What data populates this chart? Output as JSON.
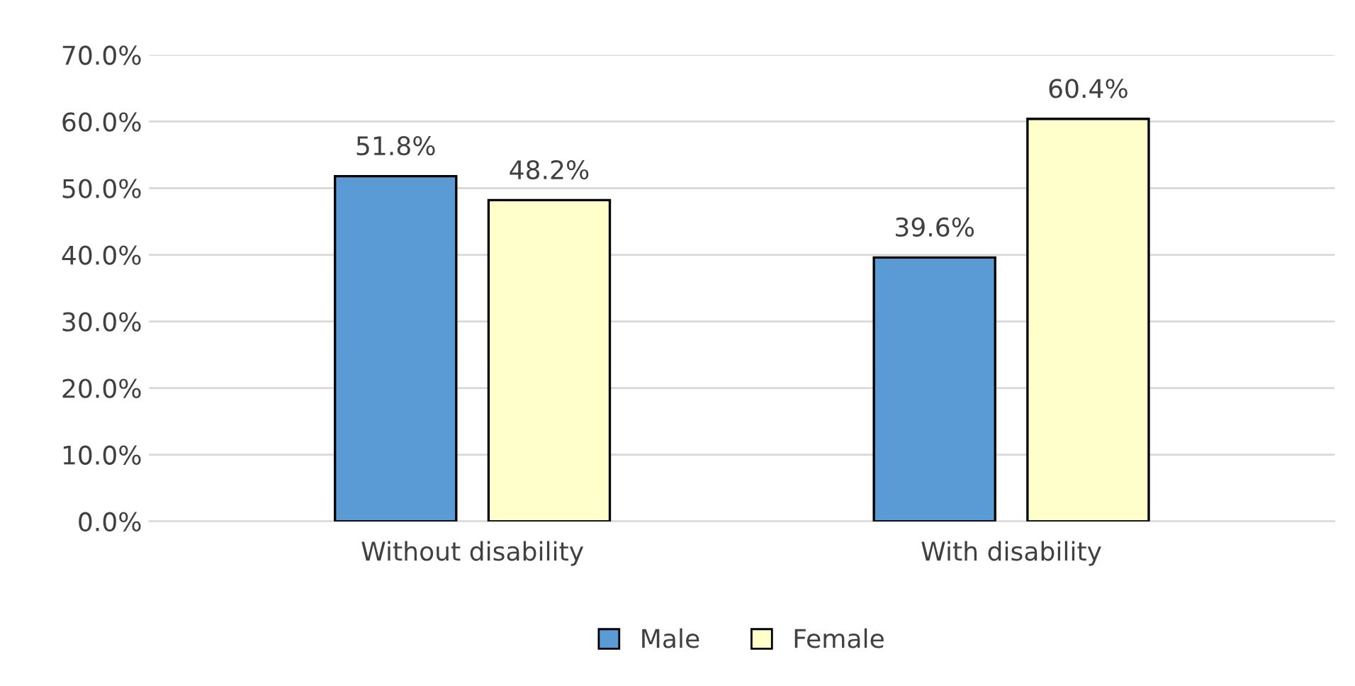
{
  "chart_data": {
    "type": "bar",
    "categories": [
      "Without disability",
      "With disability"
    ],
    "series": [
      {
        "name": "Male",
        "color": "#5b9bd5",
        "values": [
          51.8,
          39.6
        ],
        "value_labels": [
          "51.8%",
          "39.6%"
        ]
      },
      {
        "name": "Female",
        "color": "#ffffcc",
        "values": [
          48.2,
          60.4
        ],
        "value_labels": [
          "48.2%",
          "60.4%"
        ]
      }
    ],
    "ylim": [
      0,
      70
    ],
    "yticks": [
      {
        "value": 0,
        "label": "0.0%"
      },
      {
        "value": 10,
        "label": "10.0%"
      },
      {
        "value": 20,
        "label": "20.0%"
      },
      {
        "value": 30,
        "label": "30.0%"
      },
      {
        "value": 40,
        "label": "40.0%"
      },
      {
        "value": 50,
        "label": "50.0%"
      },
      {
        "value": 60,
        "label": "60.0%"
      },
      {
        "value": 70,
        "label": "70.0%"
      }
    ],
    "grid": "y",
    "legend": "bottom"
  }
}
